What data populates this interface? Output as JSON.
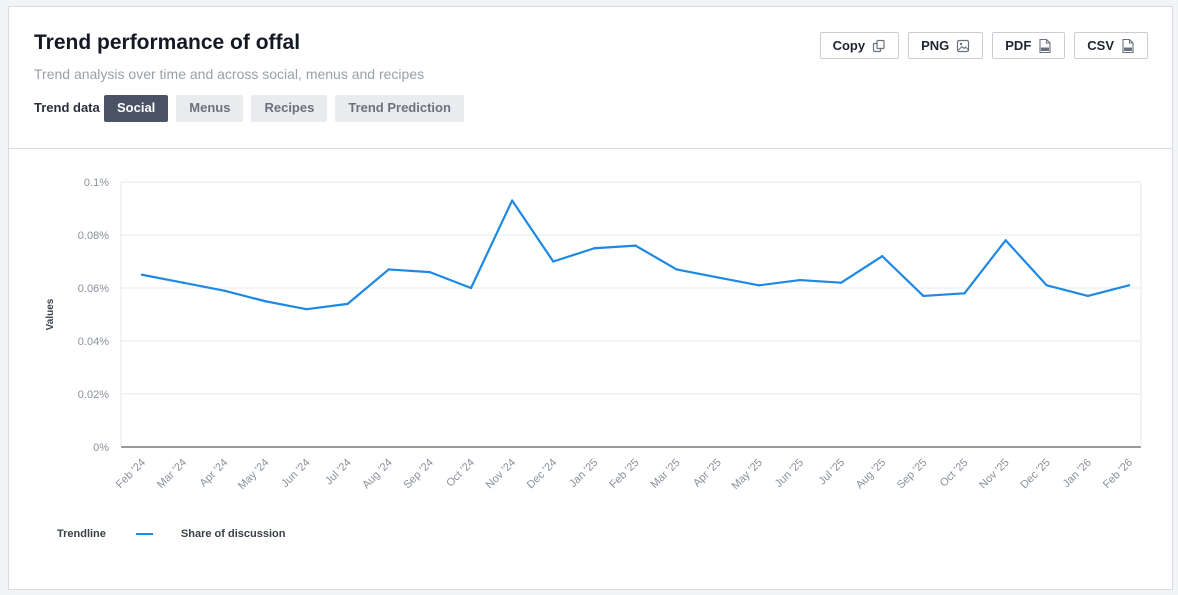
{
  "header": {
    "title": "Trend performance of offal",
    "subtitle": "Trend analysis over time and across social, menus and recipes",
    "trend_data_label": "Trend data",
    "tabs": [
      {
        "label": "Social",
        "active": true
      },
      {
        "label": "Menus",
        "active": false
      },
      {
        "label": "Recipes",
        "active": false
      },
      {
        "label": "Trend Prediction",
        "active": false
      }
    ]
  },
  "actions": {
    "copy": "Copy",
    "png": "PNG",
    "pdf": "PDF",
    "csv": "CSV"
  },
  "icons": {
    "copy": "copy-icon",
    "png": "image-icon",
    "pdf": "pdf-file-icon",
    "csv": "csv-file-icon"
  },
  "colors": {
    "line": "#1e88e5",
    "active_tab": "#4a5366"
  },
  "legend": {
    "title": "Trendline",
    "series_label": "Share of discussion"
  },
  "chart_data": {
    "type": "line",
    "title": "",
    "xlabel": "",
    "ylabel": "Values",
    "ylim": [
      0,
      0.1
    ],
    "yticks": [
      "0%",
      "0.02%",
      "0.04%",
      "0.06%",
      "0.08%",
      "0.1%"
    ],
    "grid": true,
    "legend_position": "bottom-left",
    "categories": [
      "Feb '24",
      "Mar '24",
      "Apr '24",
      "May '24",
      "Jun '24",
      "Jul '24",
      "Aug '24",
      "Sep '24",
      "Oct '24",
      "Nov '24",
      "Dec '24",
      "Jan '25",
      "Feb '25",
      "Mar '25",
      "Apr '25",
      "May '25",
      "Jun '25",
      "Jul '25",
      "Aug '25",
      "Sep '25",
      "Oct '25",
      "Nov '25",
      "Dec '25",
      "Jan '26",
      "Feb '26"
    ],
    "series": [
      {
        "name": "Share of discussion",
        "values": [
          0.065,
          0.062,
          0.059,
          0.055,
          0.052,
          0.054,
          0.067,
          0.066,
          0.06,
          0.093,
          0.07,
          0.075,
          0.076,
          0.067,
          0.064,
          0.061,
          0.063,
          0.062,
          0.072,
          0.057,
          0.058,
          0.078,
          0.061,
          0.057,
          0.061
        ]
      }
    ]
  }
}
